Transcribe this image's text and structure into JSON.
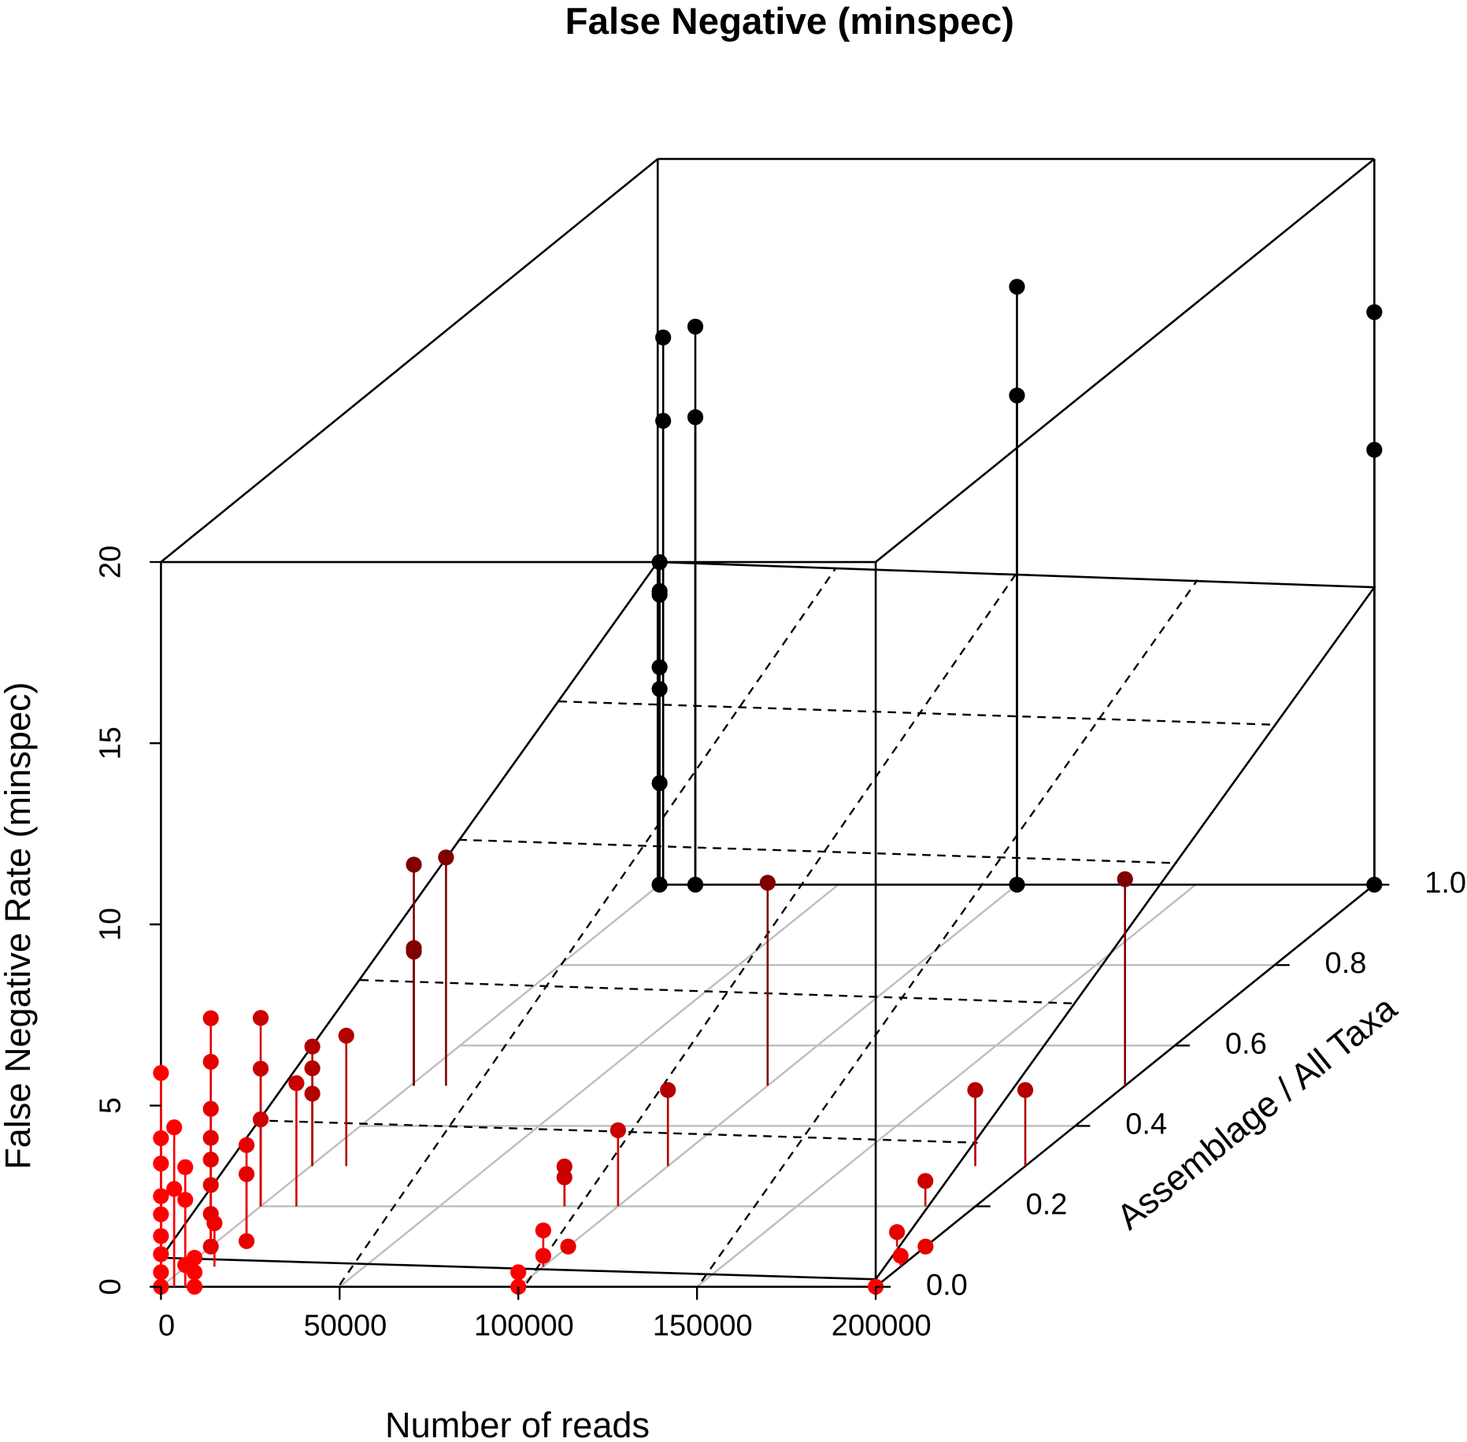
{
  "chart_data": {
    "type": "scatter3d",
    "title": "False Negative (minspec)",
    "xlabel": "Number of reads",
    "ylabel": "Assemblage / All Taxa",
    "zlabel": "False Negative Rate (minspec)",
    "xlim": [
      0,
      200000
    ],
    "xticks": [
      0,
      50000,
      100000,
      150000,
      200000
    ],
    "ylim": [
      0,
      1
    ],
    "yticks": [
      {
        "value": 0,
        "label": "0.0"
      },
      0.2,
      0.4,
      0.6,
      0.8,
      {
        "value": 1,
        "label": "1.0"
      }
    ],
    "zlim": [
      0,
      20
    ],
    "zticks": [
      0,
      5,
      10,
      15,
      20
    ],
    "grid": true,
    "color_front": "#ff0000",
    "color_back": "#000000",
    "x": [
      0,
      0,
      0,
      0,
      0,
      0,
      0,
      1000,
      1000,
      10000,
      10000,
      10000,
      100000,
      100000,
      100000,
      200000,
      200000,
      200000,
      100000,
      200000,
      10000,
      1000,
      1000,
      1000,
      186000,
      200000,
      100000,
      10000,
      500,
      500,
      500,
      186000,
      100000,
      85000,
      85000,
      10000,
      0,
      0,
      0,
      200000,
      192000,
      100000,
      10000,
      10000,
      10000,
      0,
      0,
      0,
      0,
      0,
      0,
      0,
      0,
      100000,
      8000,
      200000,
      100000,
      6800,
      3700,
      3700,
      6800,
      6800,
      0,
      0,
      0,
      0,
      0,
      0,
      0,
      0,
      0,
      9400,
      9400,
      9400,
      100000,
      100000,
      200000
    ],
    "y": [
      1,
      1,
      1,
      1,
      1,
      1,
      1,
      1,
      1,
      1,
      1,
      1,
      1,
      1,
      1,
      1,
      1,
      1,
      0.5,
      0.5,
      0.5,
      0.5,
      0.5,
      0.5,
      0.3,
      0.3,
      0.3,
      0.3,
      0.3,
      0.3,
      0.3,
      0.2,
      0.2,
      0.2,
      0.2,
      0.2,
      0.2,
      0.2,
      0.2,
      0.1,
      0.1,
      0.1,
      0.1,
      0.1,
      0.1,
      0.1,
      0.1,
      0.1,
      0.1,
      0.1,
      0.1,
      0.1,
      0.1,
      0.05,
      0.05,
      0.05,
      0.05,
      0,
      0,
      0,
      0,
      0,
      0,
      0,
      0,
      0,
      0,
      0,
      0,
      0,
      0,
      0,
      0,
      0,
      0,
      0,
      0
    ],
    "z": [
      0,
      8.9,
      8.1,
      8.0,
      6.0,
      5.4,
      2.8,
      12.8,
      15.1,
      0,
      12.9,
      15.4,
      0,
      13.5,
      16.5,
      0,
      12.0,
      15.8,
      5.6,
      5.7,
      6.3,
      6.1,
      3.8,
      3.7,
      2.1,
      2.1,
      2.1,
      3.6,
      3.3,
      2.7,
      2.0,
      0.7,
      2.1,
      1.1,
      0.8,
      3.4,
      5.2,
      3.8,
      2.4,
      0,
      0.4,
      0,
      2.8,
      2.0,
      0.15,
      6.3,
      5.1,
      3.8,
      3.0,
      2.4,
      1.7,
      0.9,
      0,
      1.0,
      1.2,
      0.3,
      0.3,
      3.3,
      4.4,
      2.7,
      2.4,
      0.6,
      5.9,
      4.1,
      3.4,
      2.5,
      2.0,
      1.4,
      0.9,
      0.4,
      0,
      0,
      0.4,
      0.8,
      0,
      0.4,
      0
    ]
  }
}
